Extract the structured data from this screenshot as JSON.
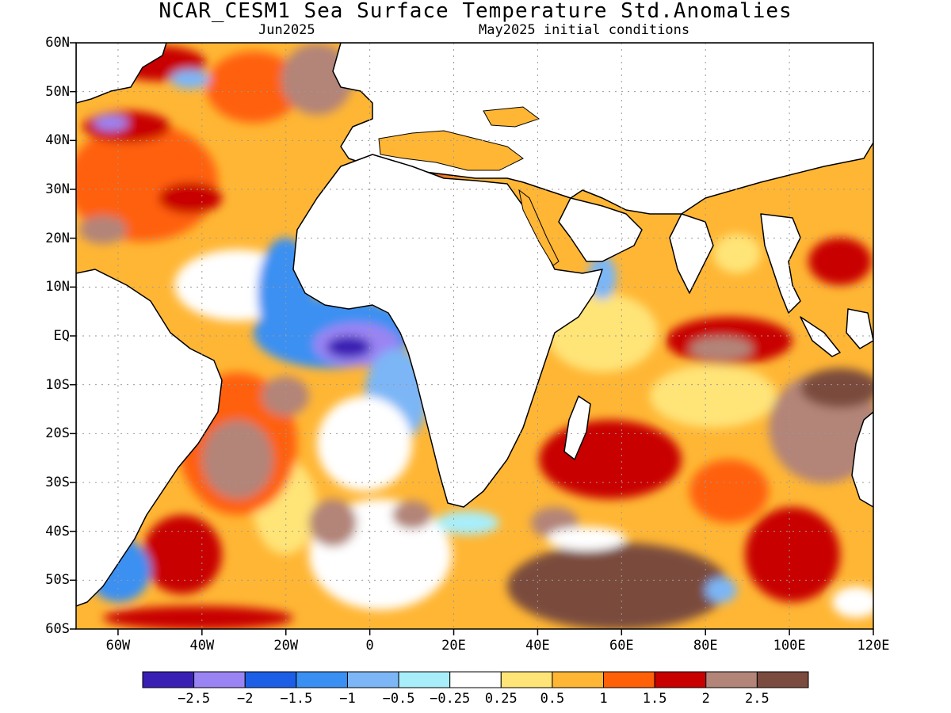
{
  "header": {
    "title": "NCAR_CESM1 Sea Surface Temperature Std.Anomalies",
    "forecast_month": "Jun2025",
    "initial_conditions": "May2025 initial conditions"
  },
  "map": {
    "projection": "cylindrical equidistant",
    "lon_range": [
      -70,
      120
    ],
    "lat_range": [
      -60,
      60
    ],
    "grid": "dotted, every 20 degrees longitude and 10 degrees latitude",
    "lat_labels": [
      "60N",
      "50N",
      "40N",
      "30N",
      "20N",
      "10N",
      "EQ",
      "10S",
      "20S",
      "30S",
      "40S",
      "50S",
      "60S"
    ],
    "lon_labels": [
      "60W",
      "40W",
      "20W",
      "0",
      "20E",
      "40E",
      "60E",
      "80E",
      "100E",
      "120E"
    ]
  },
  "colorbar": {
    "colors": [
      "#3a1fb4",
      "#9a84f4",
      "#1c5fe6",
      "#3a90f2",
      "#7cb6f6",
      "#a8eefa",
      "#ffffff",
      "#ffe478",
      "#ffb634",
      "#ff6008",
      "#c80000",
      "#b38478",
      "#7a4b3e"
    ],
    "labels": [
      "−2.5",
      "−2",
      "−1.5",
      "−1",
      "−0.5",
      "−0.25",
      "0.25",
      "0.5",
      "1",
      "1.5",
      "2",
      "2.5"
    ]
  }
}
